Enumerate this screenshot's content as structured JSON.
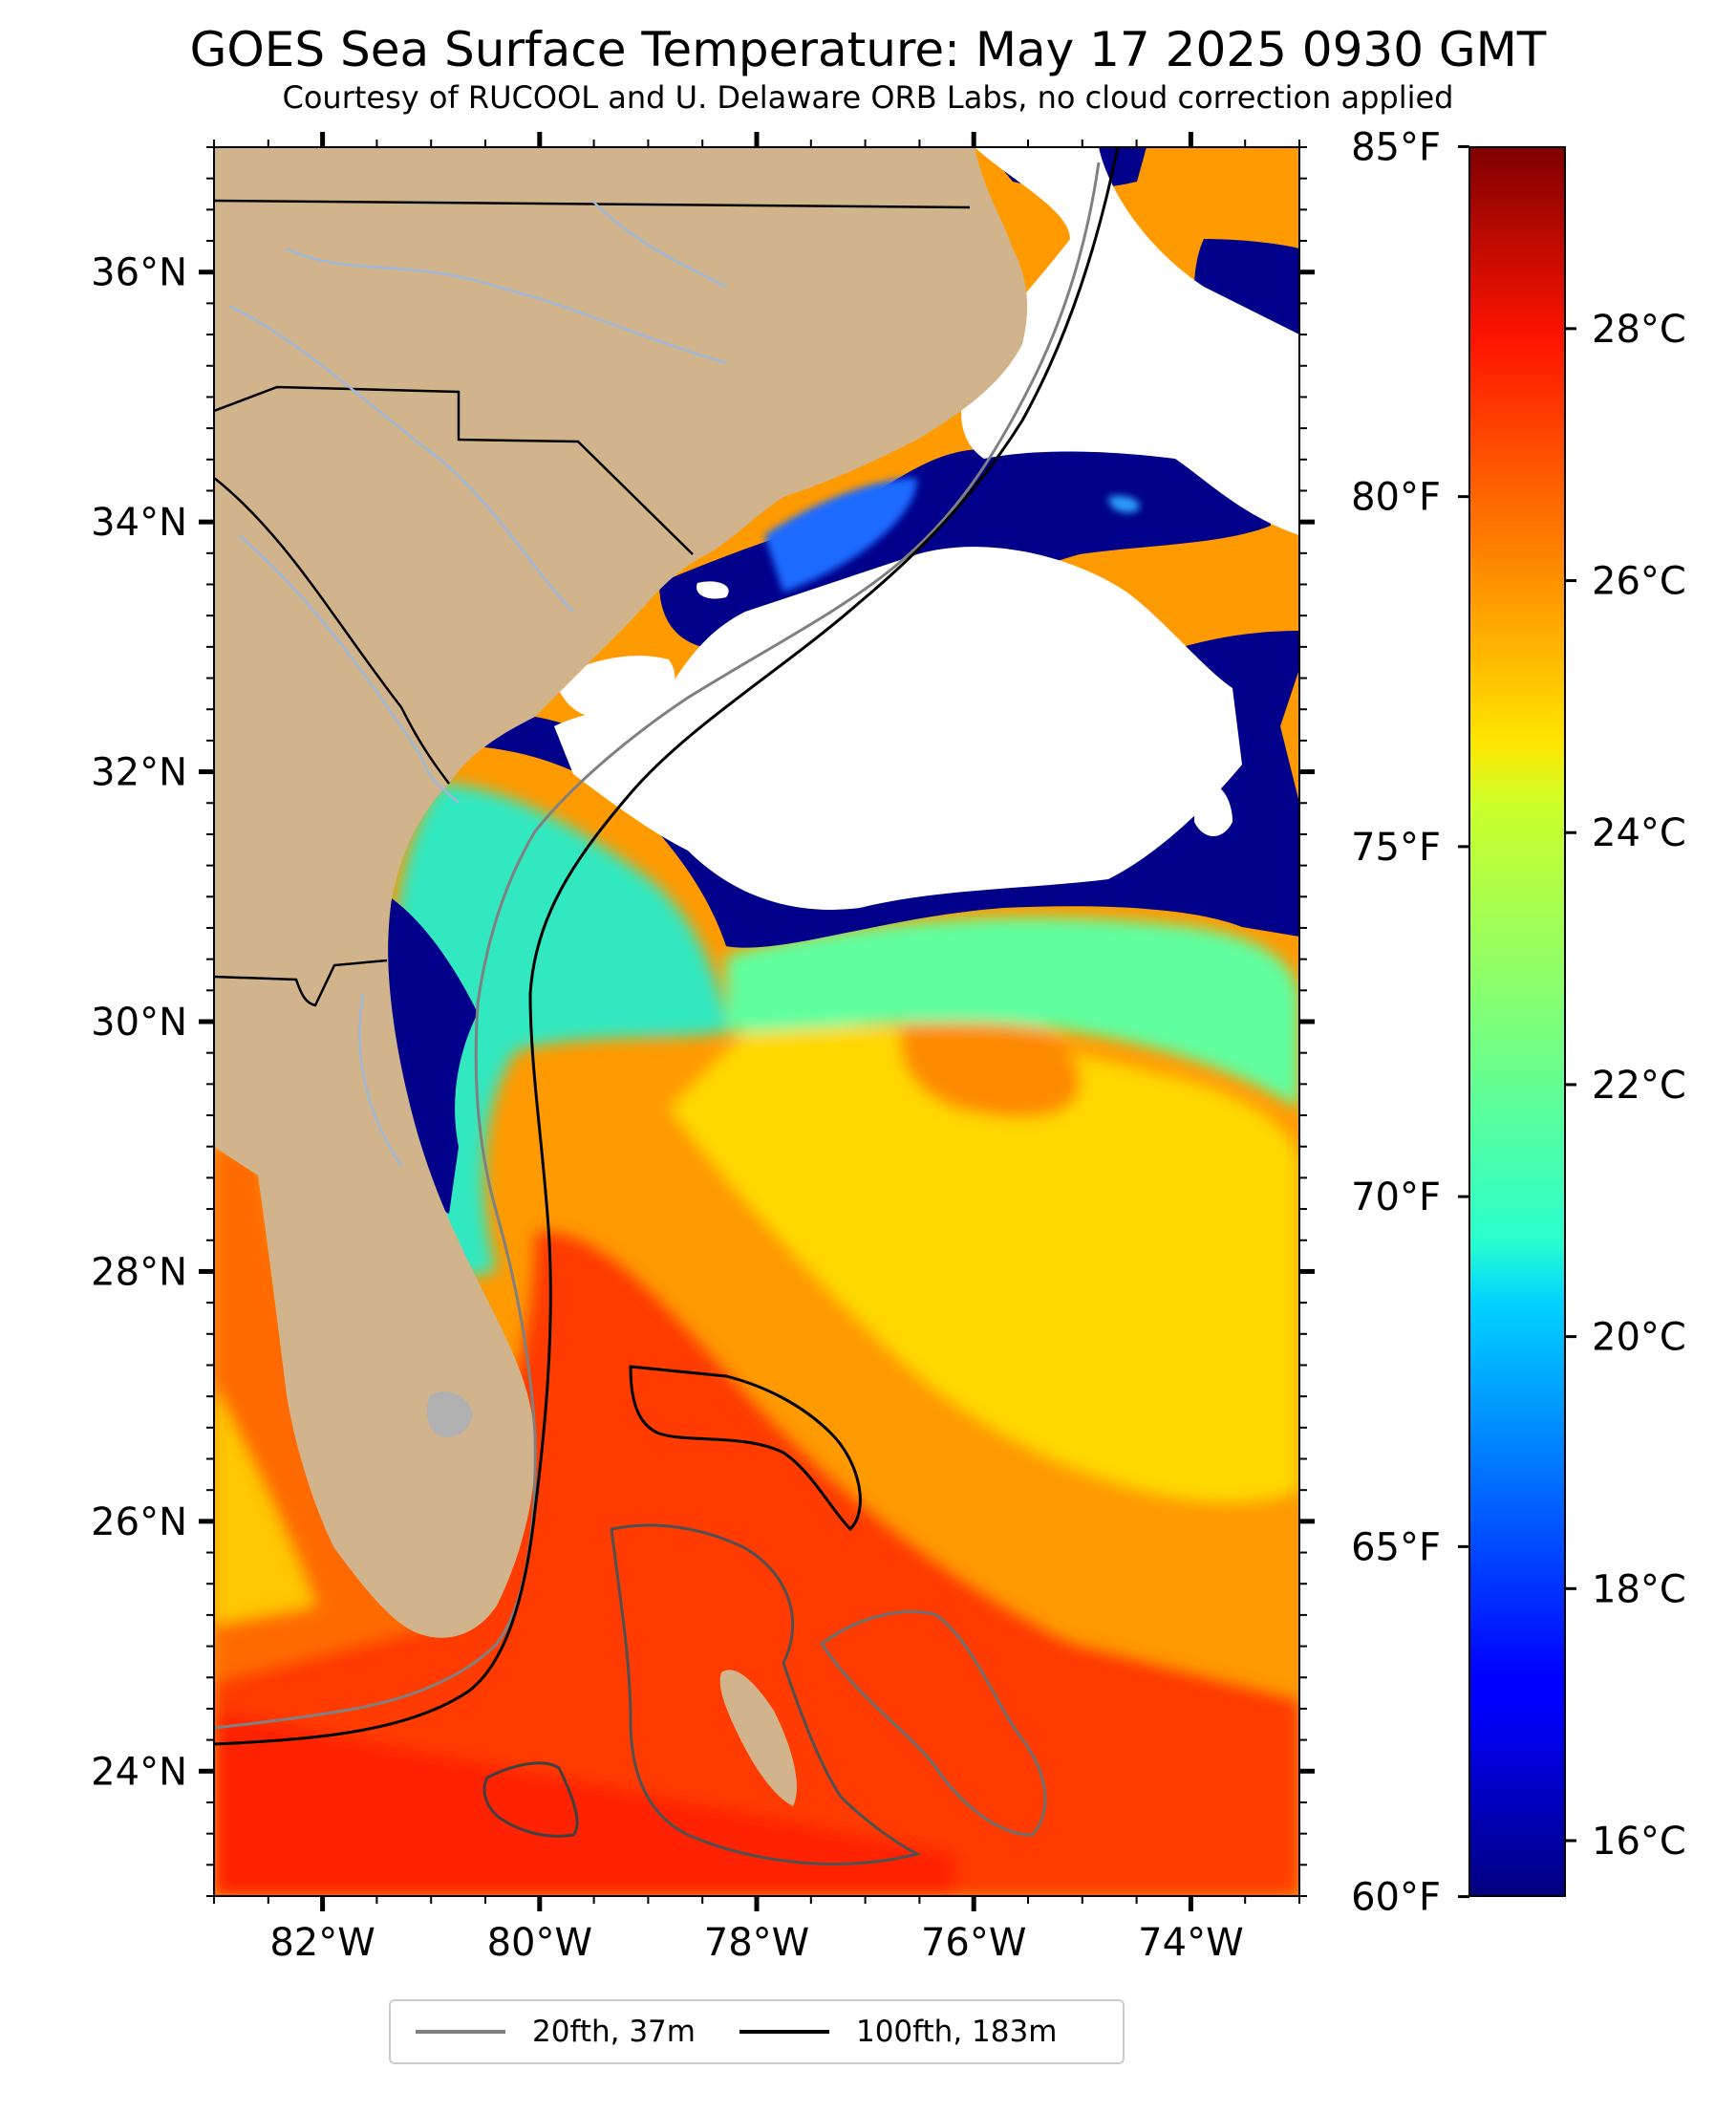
{
  "title": "GOES Sea Surface Temperature: May 17 2025 0930 GMT",
  "subtitle": "Courtesy of RUCOOL and U. Delaware ORB Labs, no cloud correction applied",
  "map": {
    "lon_range": [
      -83,
      -73
    ],
    "lat_range": [
      23,
      37
    ],
    "lon_ticks": [
      {
        "value": -82,
        "label": "82°W"
      },
      {
        "value": -80,
        "label": "80°W"
      },
      {
        "value": -78,
        "label": "78°W"
      },
      {
        "value": -76,
        "label": "76°W"
      },
      {
        "value": -74,
        "label": "74°W"
      }
    ],
    "lat_ticks": [
      {
        "value": 24,
        "label": "24°N"
      },
      {
        "value": 26,
        "label": "26°N"
      },
      {
        "value": 28,
        "label": "28°N"
      },
      {
        "value": 30,
        "label": "30°N"
      },
      {
        "value": 32,
        "label": "32°N"
      },
      {
        "value": 34,
        "label": "34°N"
      },
      {
        "value": 36,
        "label": "36°N"
      }
    ],
    "colors": {
      "land": "#d2b48c",
      "cloud": "#ffffff",
      "coast": "#000000",
      "river": "#a0b8d8",
      "isobath_20": "#808080",
      "isobath_100": "#000000"
    }
  },
  "colorbar": {
    "colormap": "jet",
    "range_c": [
      15.56,
      29.44
    ],
    "celsius_ticks": [
      {
        "value": 16,
        "label": "16°C"
      },
      {
        "value": 18,
        "label": "18°C"
      },
      {
        "value": 20,
        "label": "20°C"
      },
      {
        "value": 22,
        "label": "22°C"
      },
      {
        "value": 24,
        "label": "24°C"
      },
      {
        "value": 26,
        "label": "26°C"
      },
      {
        "value": 28,
        "label": "28°C"
      }
    ],
    "fahrenheit_ticks": [
      {
        "value": 60,
        "label": "60°F"
      },
      {
        "value": 65,
        "label": "65°F"
      },
      {
        "value": 70,
        "label": "70°F"
      },
      {
        "value": 75,
        "label": "75°F"
      },
      {
        "value": 80,
        "label": "80°F"
      },
      {
        "value": 85,
        "label": "85°F"
      }
    ]
  },
  "legend": {
    "items": [
      {
        "label": "20fth, 37m",
        "color": "#808080"
      },
      {
        "label": "100fth, 183m",
        "color": "#000000"
      }
    ]
  }
}
